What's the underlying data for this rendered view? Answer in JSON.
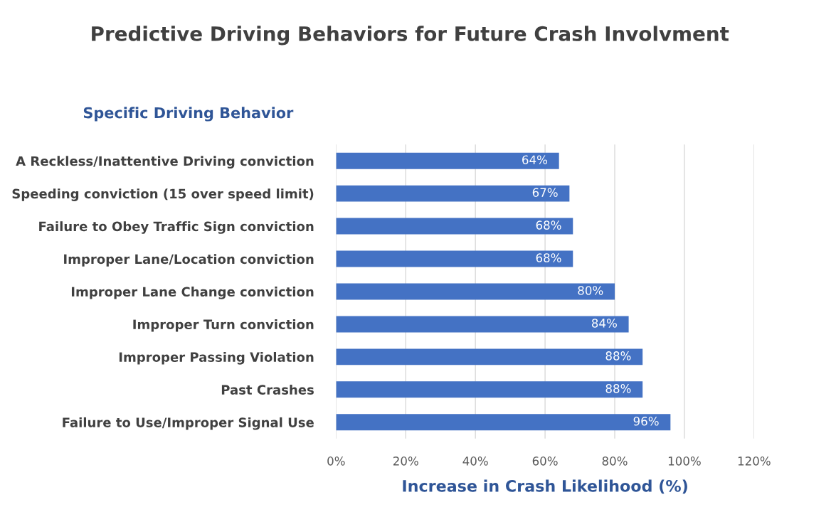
{
  "chart_data": {
    "type": "bar",
    "orientation": "horizontal",
    "title": "Predictive Driving Behaviors for Future Crash Involvment",
    "ylabel": "Specific Driving Behavior",
    "xlabel": "Increase in Crash Likelihood (%)",
    "categories": [
      "A Reckless/Inattentive Driving conviction",
      "Speeding conviction (15 over speed limit)",
      "Failure to Obey Traffic Sign conviction",
      "Improper Lane/Location conviction",
      "Improper Lane Change conviction",
      "Improper Turn conviction",
      "Improper Passing Violation",
      "Past Crashes",
      "Failure to Use/Improper Signal Use"
    ],
    "values": [
      64,
      67,
      68,
      68,
      80,
      84,
      88,
      88,
      96
    ],
    "value_labels": [
      "64%",
      "67%",
      "68%",
      "68%",
      "80%",
      "84%",
      "88%",
      "88%",
      "96%"
    ],
    "color": "#4472c4",
    "xlim": [
      0,
      120
    ],
    "xticks": [
      {
        "value": 0,
        "label": "0%"
      },
      {
        "value": 20,
        "label": "20%"
      },
      {
        "value": 40,
        "label": "40%"
      },
      {
        "value": 60,
        "label": "60%"
      },
      {
        "value": 80,
        "label": "80%"
      },
      {
        "value": 100,
        "label": "100%"
      },
      {
        "value": 120,
        "label": "120%"
      }
    ],
    "grid": "x"
  }
}
